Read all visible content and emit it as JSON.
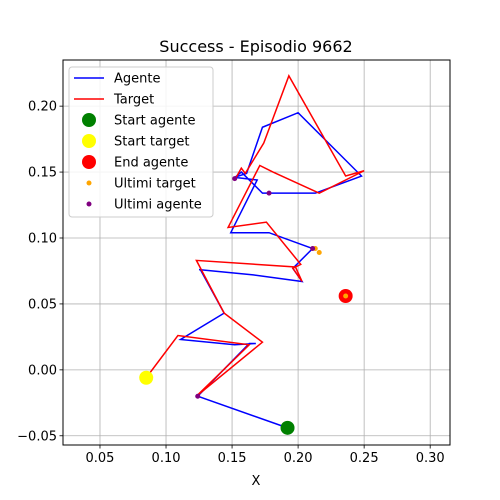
{
  "chart_data": {
    "type": "line",
    "title": "Success - Episodio 9662",
    "xlabel": "X",
    "ylabel": "",
    "xlim": [
      0.022,
      0.315
    ],
    "ylim": [
      -0.057,
      0.235
    ],
    "xticks": [
      "0.05",
      "0.10",
      "0.15",
      "0.20",
      "0.25",
      "0.30"
    ],
    "xtick_values": [
      0.05,
      0.1,
      0.15,
      0.2,
      0.25,
      0.3
    ],
    "yticks": [
      "−0.05",
      "0.00",
      "0.05",
      "0.10",
      "0.15",
      "0.20"
    ],
    "ytick_values": [
      -0.05,
      0.0,
      0.05,
      0.1,
      0.15,
      0.2
    ],
    "grid": true,
    "legend_position": "upper-left",
    "colors": {
      "agente": "#0000ff",
      "target": "#ff0000",
      "start_agente": "#008000",
      "start_target": "#ffff00",
      "end_agente": "#ff0000",
      "ultimi_target": "#ffa500",
      "ultimi_agente": "#800080"
    },
    "series": [
      {
        "name": "Agente",
        "kind": "line",
        "x": [
          0.192,
          0.124,
          0.163,
          0.168,
          0.152,
          0.111,
          0.144,
          0.126,
          0.125,
          0.166,
          0.203,
          0.196,
          0.211,
          0.178,
          0.149,
          0.169,
          0.152,
          0.161,
          0.173,
          0.2,
          0.248,
          0.213,
          0.173,
          0.157,
          0.151
        ],
        "y": [
          -0.044,
          -0.02,
          0.02,
          0.02,
          0.019,
          0.023,
          0.043,
          0.076,
          0.076,
          0.072,
          0.067,
          0.077,
          0.092,
          0.104,
          0.104,
          0.144,
          0.146,
          0.149,
          0.184,
          0.195,
          0.147,
          0.134,
          0.134,
          0.15,
          0.145
        ]
      },
      {
        "name": "Target",
        "kind": "line",
        "x": [
          0.085,
          0.109,
          0.163,
          0.123,
          0.173,
          0.144,
          0.123,
          0.198,
          0.203,
          0.196,
          0.202,
          0.176,
          0.147,
          0.171,
          0.181,
          0.216,
          0.25,
          0.236,
          0.193,
          0.174,
          0.16,
          0.157,
          0.152
        ],
        "y": [
          -0.006,
          0.026,
          0.019,
          -0.02,
          0.021,
          0.043,
          0.083,
          0.078,
          0.067,
          0.077,
          0.08,
          0.112,
          0.108,
          0.155,
          0.15,
          0.134,
          0.151,
          0.147,
          0.223,
          0.172,
          0.149,
          0.153,
          0.144
        ]
      },
      {
        "name": "Start agente",
        "kind": "point",
        "x": [
          0.192
        ],
        "y": [
          -0.044
        ]
      },
      {
        "name": "Start target",
        "kind": "point",
        "x": [
          0.085
        ],
        "y": [
          -0.006
        ]
      },
      {
        "name": "End agente",
        "kind": "point",
        "x": [
          0.236
        ],
        "y": [
          0.056
        ]
      },
      {
        "name": "Ultimi target",
        "kind": "point",
        "x": [
          0.216,
          0.236,
          0.213
        ],
        "y": [
          0.089,
          0.056,
          0.092
        ]
      },
      {
        "name": "Ultimi agente",
        "kind": "point",
        "x": [
          0.211,
          0.152,
          0.178,
          0.124
        ],
        "y": [
          0.092,
          0.145,
          0.134,
          -0.02
        ]
      }
    ]
  }
}
